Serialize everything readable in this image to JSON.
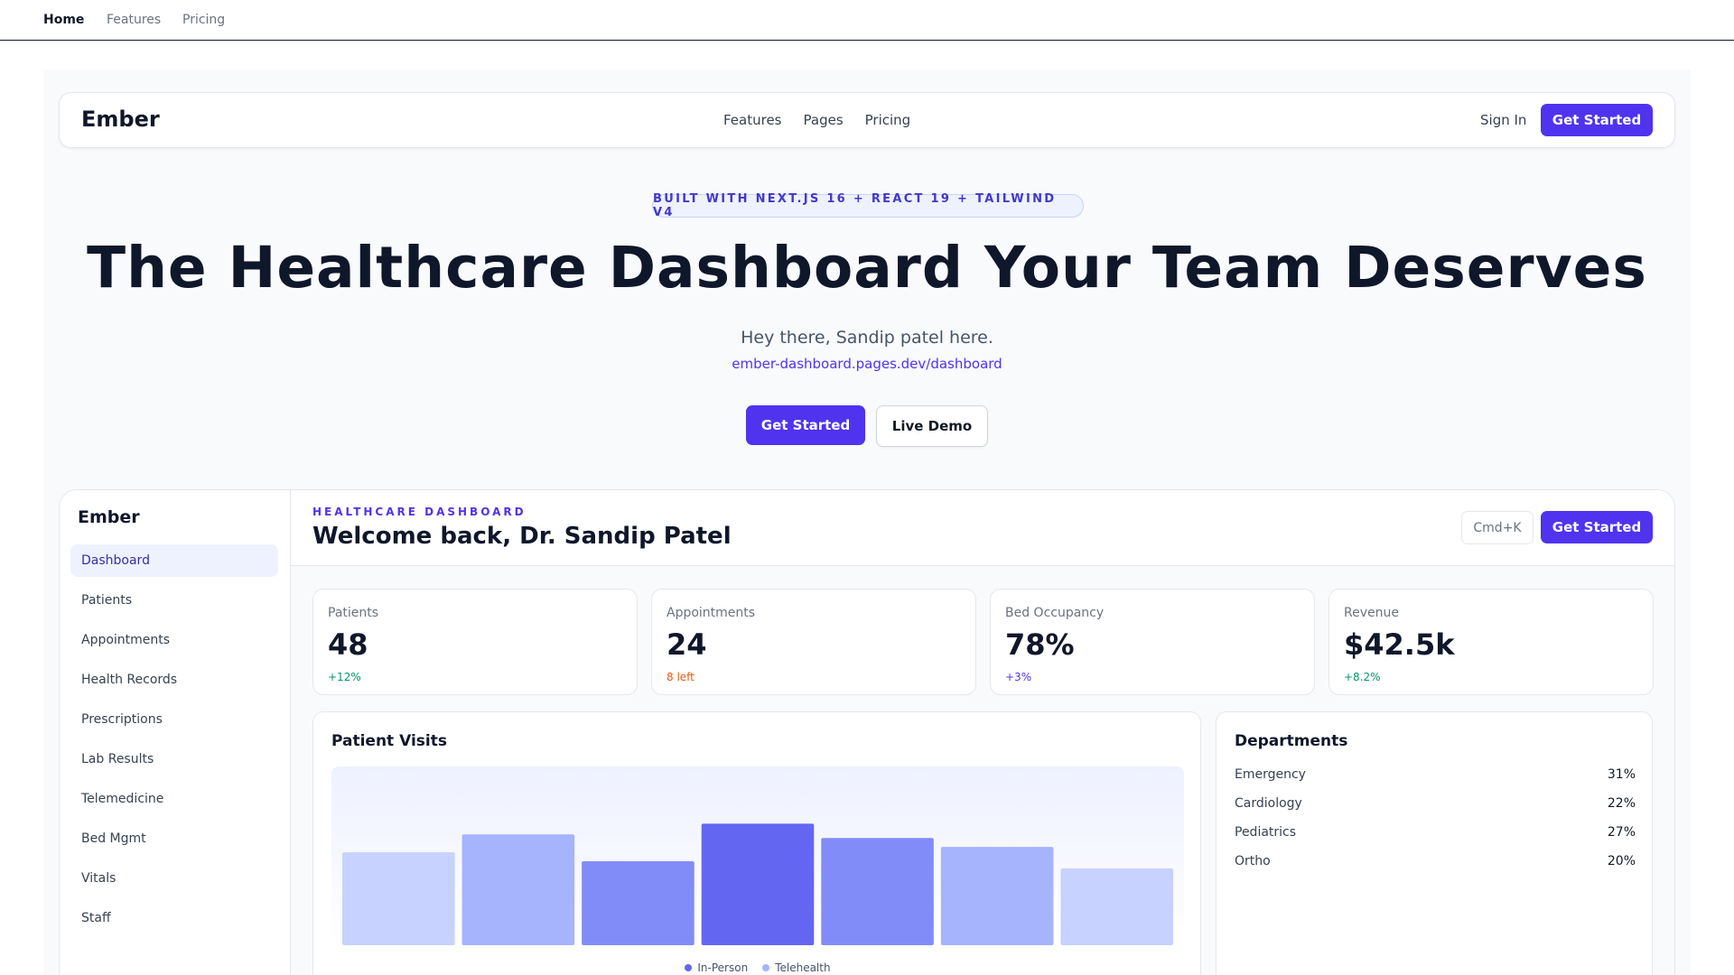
{
  "topnav": {
    "items": [
      "Home",
      "Features",
      "Pricing"
    ],
    "active": "Home"
  },
  "site_nav": {
    "brand": "Ember",
    "links": [
      "Features",
      "Pages",
      "Pricing"
    ],
    "sign_in": "Sign In",
    "cta": "Get Started"
  },
  "hero": {
    "badge": "BUILT WITH NEXT.JS 16 + REACT 19 + TAILWIND V4",
    "title": "The Healthcare Dashboard Your Team Deserves",
    "subtitle": "Hey there, Sandip patel here.",
    "link": "ember-dashboard.pages.dev/dashboard",
    "cta_primary": "Get Started",
    "cta_secondary": "Live Demo"
  },
  "sidebar": {
    "brand": "Ember",
    "items": [
      {
        "label": "Dashboard",
        "active": true
      },
      {
        "label": "Patients"
      },
      {
        "label": "Appointments"
      },
      {
        "label": "Health Records"
      },
      {
        "label": "Prescriptions"
      },
      {
        "label": "Lab Results"
      },
      {
        "label": "Telemedicine"
      },
      {
        "label": "Bed Mgmt"
      },
      {
        "label": "Vitals"
      },
      {
        "label": "Staff"
      }
    ]
  },
  "header": {
    "eyebrow": "HEALTHCARE DASHBOARD",
    "title": "Welcome back, Dr. Sandip Patel",
    "shortcut": "Cmd+K",
    "cta": "Get Started"
  },
  "stats": [
    {
      "label": "Patients",
      "value": "48",
      "delta": "+12%",
      "delta_color": "#059669"
    },
    {
      "label": "Appointments",
      "value": "24",
      "delta": "8 left",
      "delta_color": "#ea580c"
    },
    {
      "label": "Bed Occupancy",
      "value": "78%",
      "delta": "+3%",
      "delta_color": "#4f33ef"
    },
    {
      "label": "Revenue",
      "value": "$42.5k",
      "delta": "+8.2%",
      "delta_color": "#059669"
    }
  ],
  "visits_card": {
    "title": "Patient Visits"
  },
  "departments_card": {
    "title": "Departments",
    "rows": [
      {
        "name": "Emergency",
        "pct": "31%"
      },
      {
        "name": "Cardiology",
        "pct": "22%"
      },
      {
        "name": "Pediatrics",
        "pct": "27%"
      },
      {
        "name": "Ortho",
        "pct": "20%"
      }
    ]
  },
  "chart_data": {
    "type": "bar",
    "title": "Patient Visits",
    "values": [
      52,
      62,
      47,
      68,
      60,
      55,
      43
    ],
    "ylim": [
      0,
      100
    ],
    "bar_colors": [
      "#c7d2fe",
      "#a5b4fc",
      "#818cf8",
      "#6366f1",
      "#818cf8",
      "#a5b4fc",
      "#c7d2fe"
    ],
    "legend": [
      {
        "label": "In-Person",
        "color": "#6366f1"
      },
      {
        "label": "Telehealth",
        "color": "#a5b4fc"
      }
    ]
  },
  "colors": {
    "accent": "#4f33ef",
    "background": "#f8fafc"
  }
}
